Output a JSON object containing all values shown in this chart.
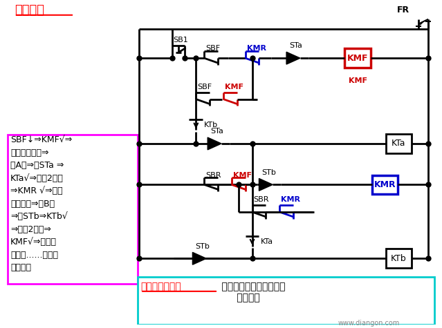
{
  "bg_color": "#FFFFFF",
  "title": "动作过程",
  "title_color": "#FF0000",
  "left_box_color": "#FF00FF",
  "left_box_text": "SBF↓⇒KMF√⇒\n小车正向运行⇒\n至A端⇒撞STa ⇒\nKTa√⇒延时2分钟\n⇒KMR √⇒小车\n反向运行⇒至B端\n⇒撞STb⇒KTb√\n⇒延时2分钟⇒\nKMF√⇒小车正\n向运行......如此往\n反运行。",
  "bottom_box_color": "#00CCCC",
  "bottom_text1": "该电路的问题：",
  "bottom_text1_color": "#FF0000",
  "bottom_text2": " 小车在两极端位置时，不\n      能停车。",
  "bottom_text2_color": "#000000",
  "watermark": "www.diangon.com",
  "line_color": "#000000",
  "red_color": "#CC0000",
  "blue_color": "#0000CC"
}
